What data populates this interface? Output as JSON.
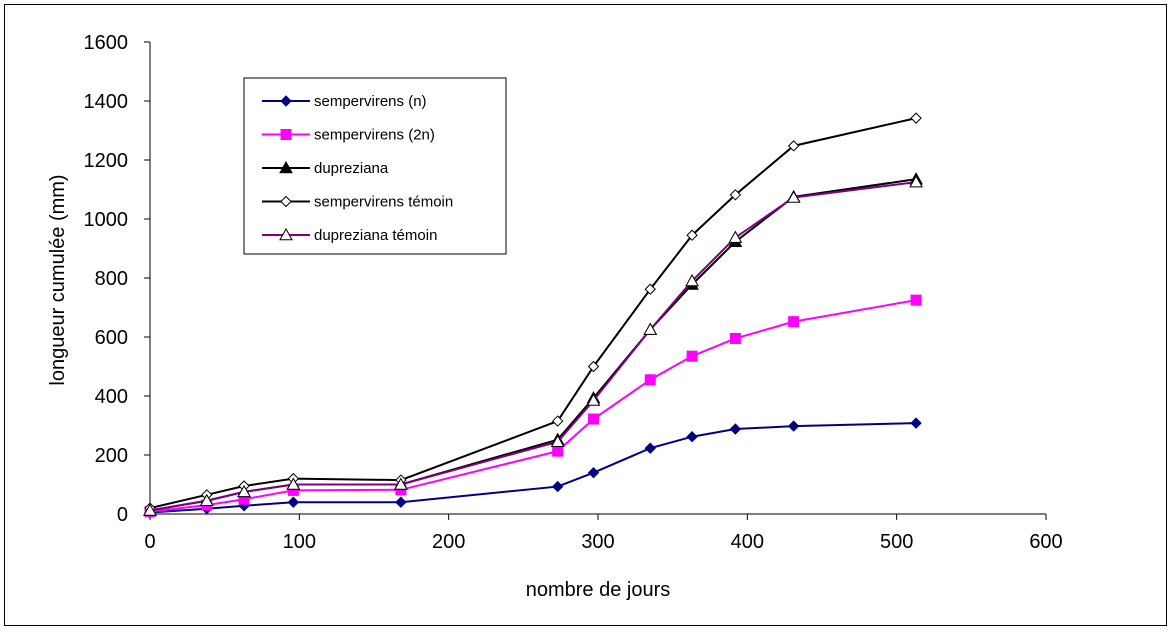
{
  "chart_data": {
    "type": "line",
    "xlabel": "nombre de jours",
    "ylabel": "longueur cumulée  (mm)",
    "xlim": [
      0,
      600
    ],
    "ylim": [
      0,
      1600
    ],
    "x_ticks": [
      0,
      100,
      200,
      300,
      400,
      500,
      600
    ],
    "y_ticks": [
      0,
      200,
      400,
      600,
      800,
      1000,
      1200,
      1400,
      1600
    ],
    "grid": false,
    "legend_position": "upper-left",
    "x": [
      0,
      38,
      63,
      96,
      168,
      273,
      297,
      335,
      363,
      392,
      431,
      513
    ],
    "series": [
      {
        "name": "sempervirens (n)",
        "color": "#000080",
        "marker": "diamond-filled",
        "values": [
          5,
          18,
          28,
          40,
          40,
          93,
          140,
          223,
          262,
          288,
          298,
          308
        ]
      },
      {
        "name": "sempervirens (2n)",
        "color": "#FF00FF",
        "marker": "square-filled",
        "values": [
          8,
          30,
          50,
          80,
          82,
          213,
          322,
          455,
          535,
          595,
          652,
          725
        ]
      },
      {
        "name": "dupreziana",
        "color": "#000000",
        "marker": "triangle-filled",
        "values": [
          12,
          45,
          75,
          100,
          100,
          252,
          393,
          625,
          778,
          923,
          1075,
          1135
        ]
      },
      {
        "name": "sempervirens témoin",
        "color": "#000000",
        "marker": "diamond-open",
        "values": [
          20,
          65,
          95,
          120,
          115,
          315,
          500,
          762,
          945,
          1082,
          1248,
          1342
        ]
      },
      {
        "name": "dupreziana témoin",
        "color": "#800080",
        "marker": "triangle-open",
        "values": [
          12,
          45,
          75,
          100,
          100,
          245,
          385,
          625,
          790,
          937,
          1073,
          1125
        ]
      }
    ]
  }
}
